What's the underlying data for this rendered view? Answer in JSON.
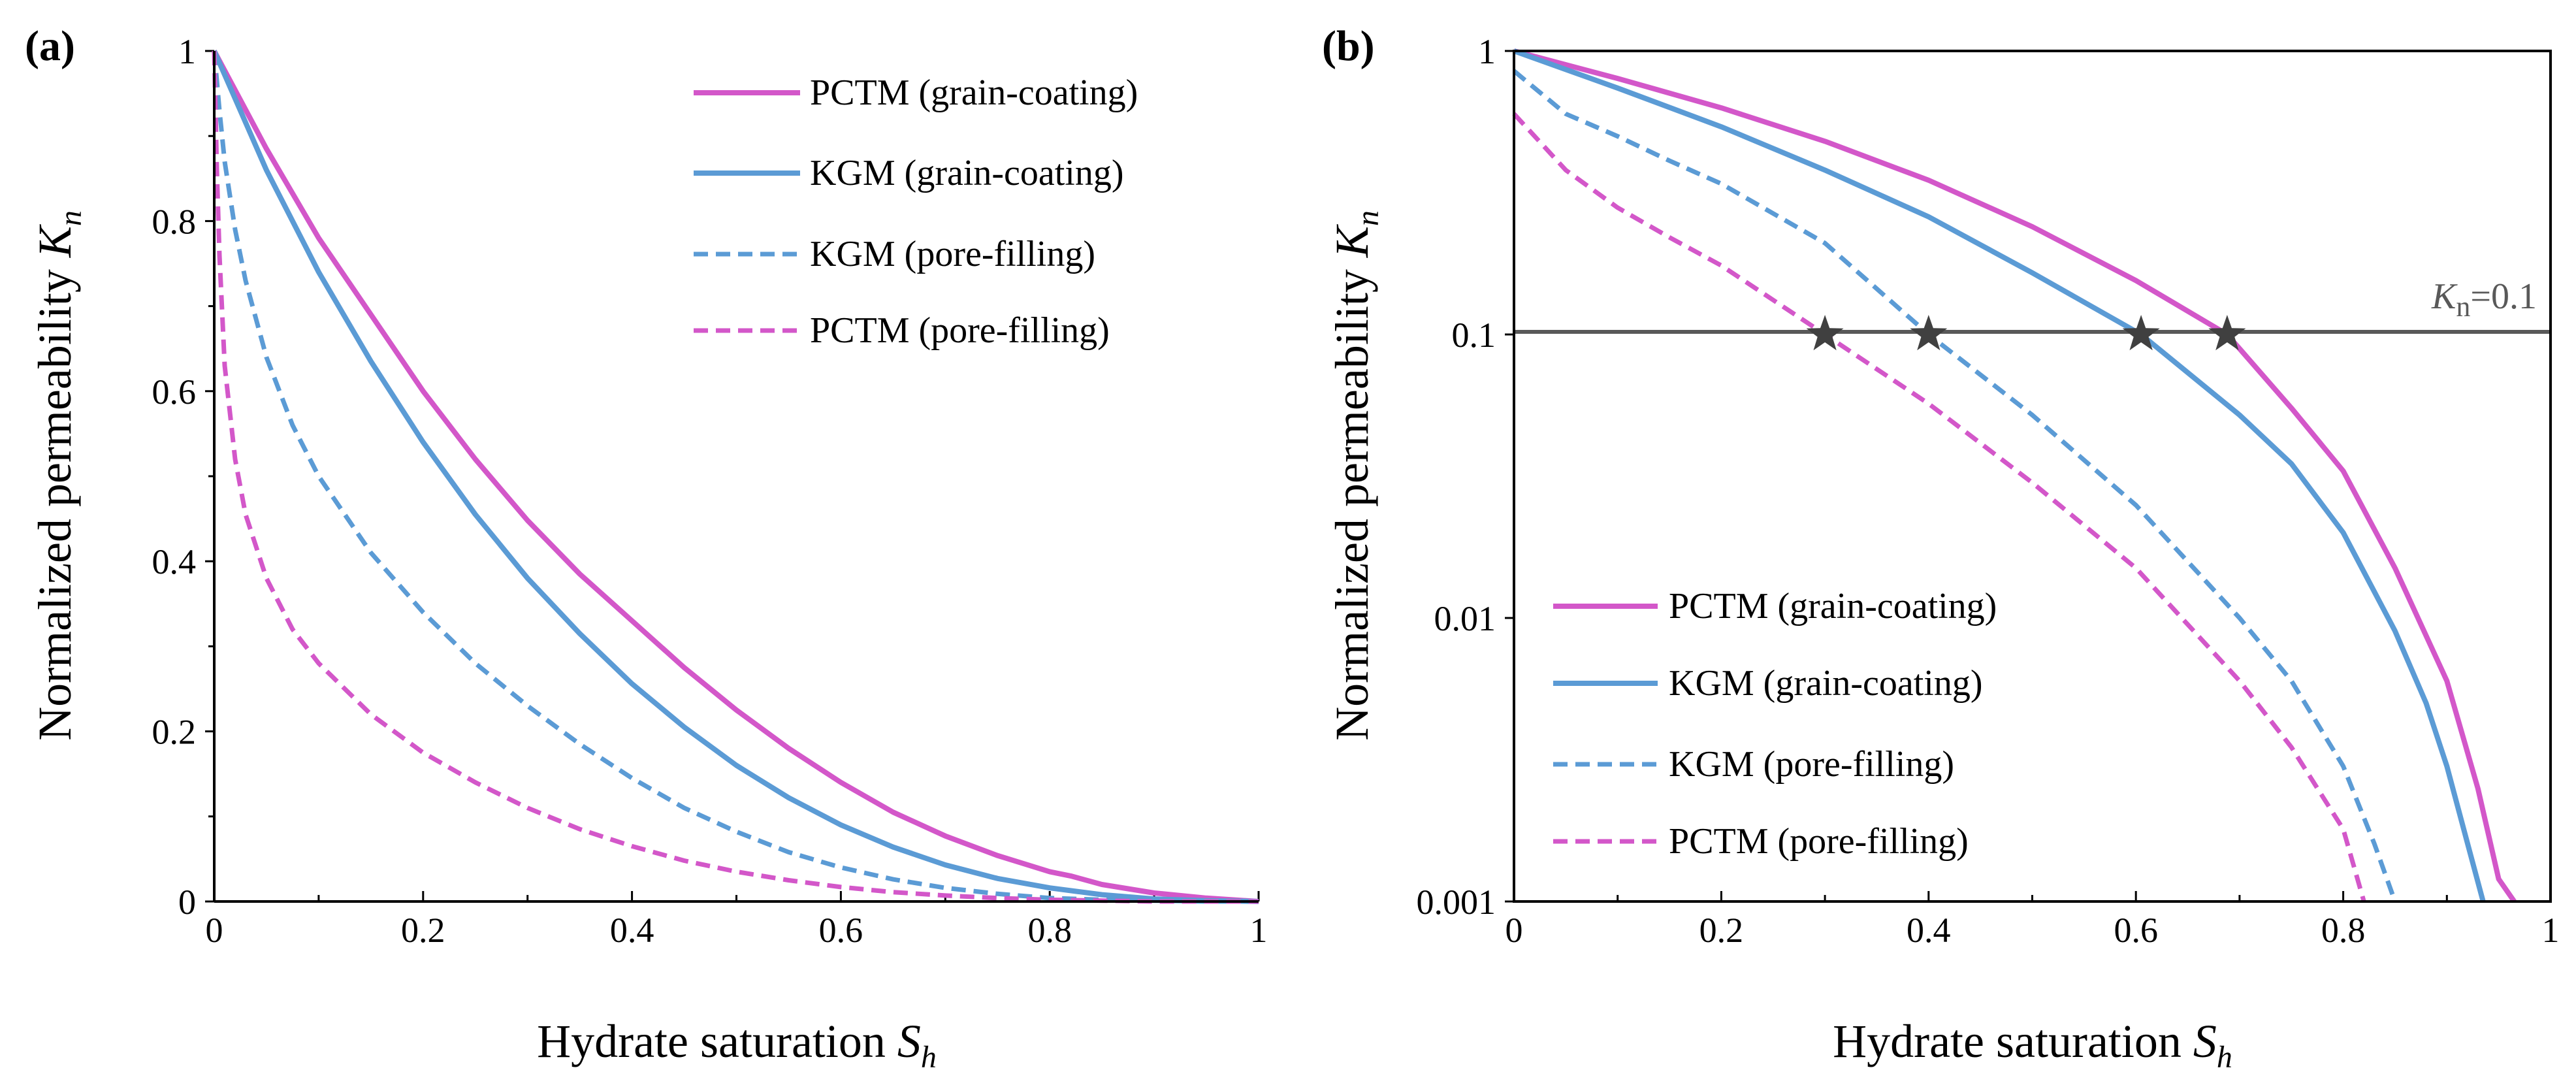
{
  "colors": {
    "pctm": "#d357c9",
    "kgm": "#5b9bd5",
    "threshold_line": "#595959",
    "star": "#404040"
  },
  "chart_data": [
    {
      "panel_label": "(a)",
      "type": "line",
      "yscale": "linear",
      "xlabel_main": "Hydrate saturation ",
      "xlabel_sym": "S",
      "xlabel_sub": "h",
      "ylabel_main": "Normalized permeability ",
      "ylabel_sym": "K",
      "ylabel_sub": "n",
      "xlim": [
        0,
        1
      ],
      "ylim": [
        0,
        1
      ],
      "xticks": [
        {
          "value": 0,
          "label": "0"
        },
        {
          "value": 0.2,
          "label": "0.2"
        },
        {
          "value": 0.4,
          "label": "0.4"
        },
        {
          "value": 0.6,
          "label": "0.6"
        },
        {
          "value": 0.8,
          "label": "0.8"
        },
        {
          "value": 1,
          "label": "1"
        }
      ],
      "yticks": [
        {
          "value": 0,
          "label": "0"
        },
        {
          "value": 0.2,
          "label": "0.2"
        },
        {
          "value": 0.4,
          "label": "0.4"
        },
        {
          "value": 0.6,
          "label": "0.6"
        },
        {
          "value": 0.8,
          "label": "0.8"
        },
        {
          "value": 1,
          "label": "1"
        }
      ],
      "legend_position": "top-right",
      "series": [
        {
          "name": "PCTM (grain-coating)",
          "color": "pctm",
          "dash": false,
          "x": [
            0,
            0.05,
            0.1,
            0.15,
            0.2,
            0.25,
            0.3,
            0.35,
            0.4,
            0.45,
            0.5,
            0.55,
            0.6,
            0.65,
            0.7,
            0.75,
            0.8,
            0.82,
            0.85,
            0.9,
            0.95,
            1.0
          ],
          "y": [
            1.0,
            0.885,
            0.78,
            0.69,
            0.6,
            0.52,
            0.448,
            0.385,
            0.33,
            0.275,
            0.225,
            0.18,
            0.14,
            0.105,
            0.077,
            0.054,
            0.035,
            0.03,
            0.02,
            0.01,
            0.004,
            0
          ]
        },
        {
          "name": "KGM (grain-coating)",
          "color": "kgm",
          "dash": false,
          "x": [
            0,
            0.05,
            0.1,
            0.15,
            0.2,
            0.25,
            0.3,
            0.35,
            0.4,
            0.45,
            0.5,
            0.55,
            0.6,
            0.65,
            0.7,
            0.75,
            0.8,
            0.85,
            0.9,
            0.95,
            1.0
          ],
          "y": [
            1.0,
            0.86,
            0.74,
            0.635,
            0.54,
            0.455,
            0.38,
            0.315,
            0.256,
            0.205,
            0.16,
            0.122,
            0.09,
            0.064,
            0.043,
            0.027,
            0.016,
            0.008,
            0.003,
            0.001,
            0
          ]
        },
        {
          "name": "KGM (pore-filling)",
          "color": "kgm",
          "dash": true,
          "x": [
            0,
            0.005,
            0.01,
            0.02,
            0.03,
            0.05,
            0.075,
            0.1,
            0.15,
            0.2,
            0.25,
            0.3,
            0.35,
            0.4,
            0.45,
            0.5,
            0.55,
            0.6,
            0.65,
            0.7,
            0.75,
            0.8,
            0.85,
            0.9,
            0.95,
            1.0
          ],
          "y": [
            1.0,
            0.93,
            0.87,
            0.79,
            0.73,
            0.64,
            0.56,
            0.5,
            0.41,
            0.34,
            0.28,
            0.23,
            0.185,
            0.145,
            0.11,
            0.082,
            0.058,
            0.04,
            0.026,
            0.016,
            0.009,
            0.004,
            0.002,
            0.001,
            0,
            0
          ]
        },
        {
          "name": "PCTM (pore-filling)",
          "color": "pctm",
          "dash": true,
          "x": [
            0,
            0.0025,
            0.005,
            0.01,
            0.02,
            0.03,
            0.05,
            0.075,
            0.1,
            0.15,
            0.2,
            0.25,
            0.3,
            0.35,
            0.4,
            0.45,
            0.5,
            0.55,
            0.6,
            0.65,
            0.7,
            0.75,
            0.8,
            0.85,
            0.9,
            0.95,
            1.0
          ],
          "y": [
            1.0,
            0.86,
            0.76,
            0.63,
            0.52,
            0.455,
            0.38,
            0.32,
            0.28,
            0.22,
            0.175,
            0.14,
            0.11,
            0.085,
            0.065,
            0.048,
            0.035,
            0.025,
            0.017,
            0.011,
            0.007,
            0.004,
            0.002,
            0.001,
            0,
            0,
            0
          ]
        }
      ]
    },
    {
      "panel_label": "(b)",
      "type": "line",
      "yscale": "log",
      "xlabel_main": "Hydrate saturation ",
      "xlabel_sym": "S",
      "xlabel_sub": "h",
      "ylabel_main": "Normalized permeability ",
      "ylabel_sym": "K",
      "ylabel_sub": "n",
      "xlim": [
        0,
        1
      ],
      "ylim": [
        0.001,
        1
      ],
      "xticks": [
        {
          "value": 0,
          "label": "0"
        },
        {
          "value": 0.2,
          "label": "0.2"
        },
        {
          "value": 0.4,
          "label": "0.4"
        },
        {
          "value": 0.6,
          "label": "0.6"
        },
        {
          "value": 0.8,
          "label": "0.8"
        },
        {
          "value": 1,
          "label": "1"
        }
      ],
      "yticks": [
        {
          "value": 0.001,
          "label": "0.001"
        },
        {
          "value": 0.01,
          "label": "0.01"
        },
        {
          "value": 0.1,
          "label": "0.1"
        },
        {
          "value": 1,
          "label": "1"
        }
      ],
      "legend_position": "bottom-left",
      "threshold": {
        "value": 0.1,
        "label_sym": "K",
        "label_sub": "n",
        "label_rest": "=0.1"
      },
      "stars": [
        {
          "x": 0.3,
          "y": 0.1
        },
        {
          "x": 0.4,
          "y": 0.1
        },
        {
          "x": 0.605,
          "y": 0.1
        },
        {
          "x": 0.688,
          "y": 0.1
        }
      ],
      "series": [
        {
          "name": "PCTM (grain-coating)",
          "color": "pctm",
          "dash": false,
          "x": [
            0,
            0.1,
            0.2,
            0.3,
            0.4,
            0.5,
            0.6,
            0.688,
            0.75,
            0.8,
            0.85,
            0.9,
            0.93,
            0.95,
            0.965
          ],
          "y": [
            1.0,
            0.8,
            0.63,
            0.48,
            0.35,
            0.24,
            0.155,
            0.1,
            0.055,
            0.033,
            0.015,
            0.006,
            0.0025,
            0.0012,
            0.001
          ]
        },
        {
          "name": "KGM (grain-coating)",
          "color": "kgm",
          "dash": false,
          "x": [
            0,
            0.1,
            0.2,
            0.3,
            0.4,
            0.5,
            0.605,
            0.7,
            0.75,
            0.8,
            0.85,
            0.88,
            0.9,
            0.92,
            0.935
          ],
          "y": [
            1.0,
            0.74,
            0.54,
            0.38,
            0.26,
            0.165,
            0.1,
            0.052,
            0.035,
            0.02,
            0.009,
            0.005,
            0.003,
            0.0016,
            0.001
          ]
        },
        {
          "name": "KGM (pore-filling)",
          "color": "kgm",
          "dash": true,
          "x": [
            0,
            0.05,
            0.1,
            0.15,
            0.2,
            0.3,
            0.4,
            0.5,
            0.6,
            0.7,
            0.75,
            0.8,
            0.83,
            0.85
          ],
          "y": [
            0.85,
            0.6,
            0.5,
            0.41,
            0.34,
            0.21,
            0.1,
            0.052,
            0.025,
            0.01,
            0.006,
            0.003,
            0.0016,
            0.001
          ]
        },
        {
          "name": "PCTM (pore-filling)",
          "color": "pctm",
          "dash": true,
          "x": [
            0,
            0.02,
            0.05,
            0.1,
            0.15,
            0.2,
            0.3,
            0.4,
            0.5,
            0.6,
            0.7,
            0.75,
            0.8,
            0.82
          ],
          "y": [
            0.6,
            0.5,
            0.38,
            0.28,
            0.22,
            0.175,
            0.1,
            0.057,
            0.03,
            0.015,
            0.006,
            0.0035,
            0.0018,
            0.001
          ]
        }
      ]
    }
  ]
}
